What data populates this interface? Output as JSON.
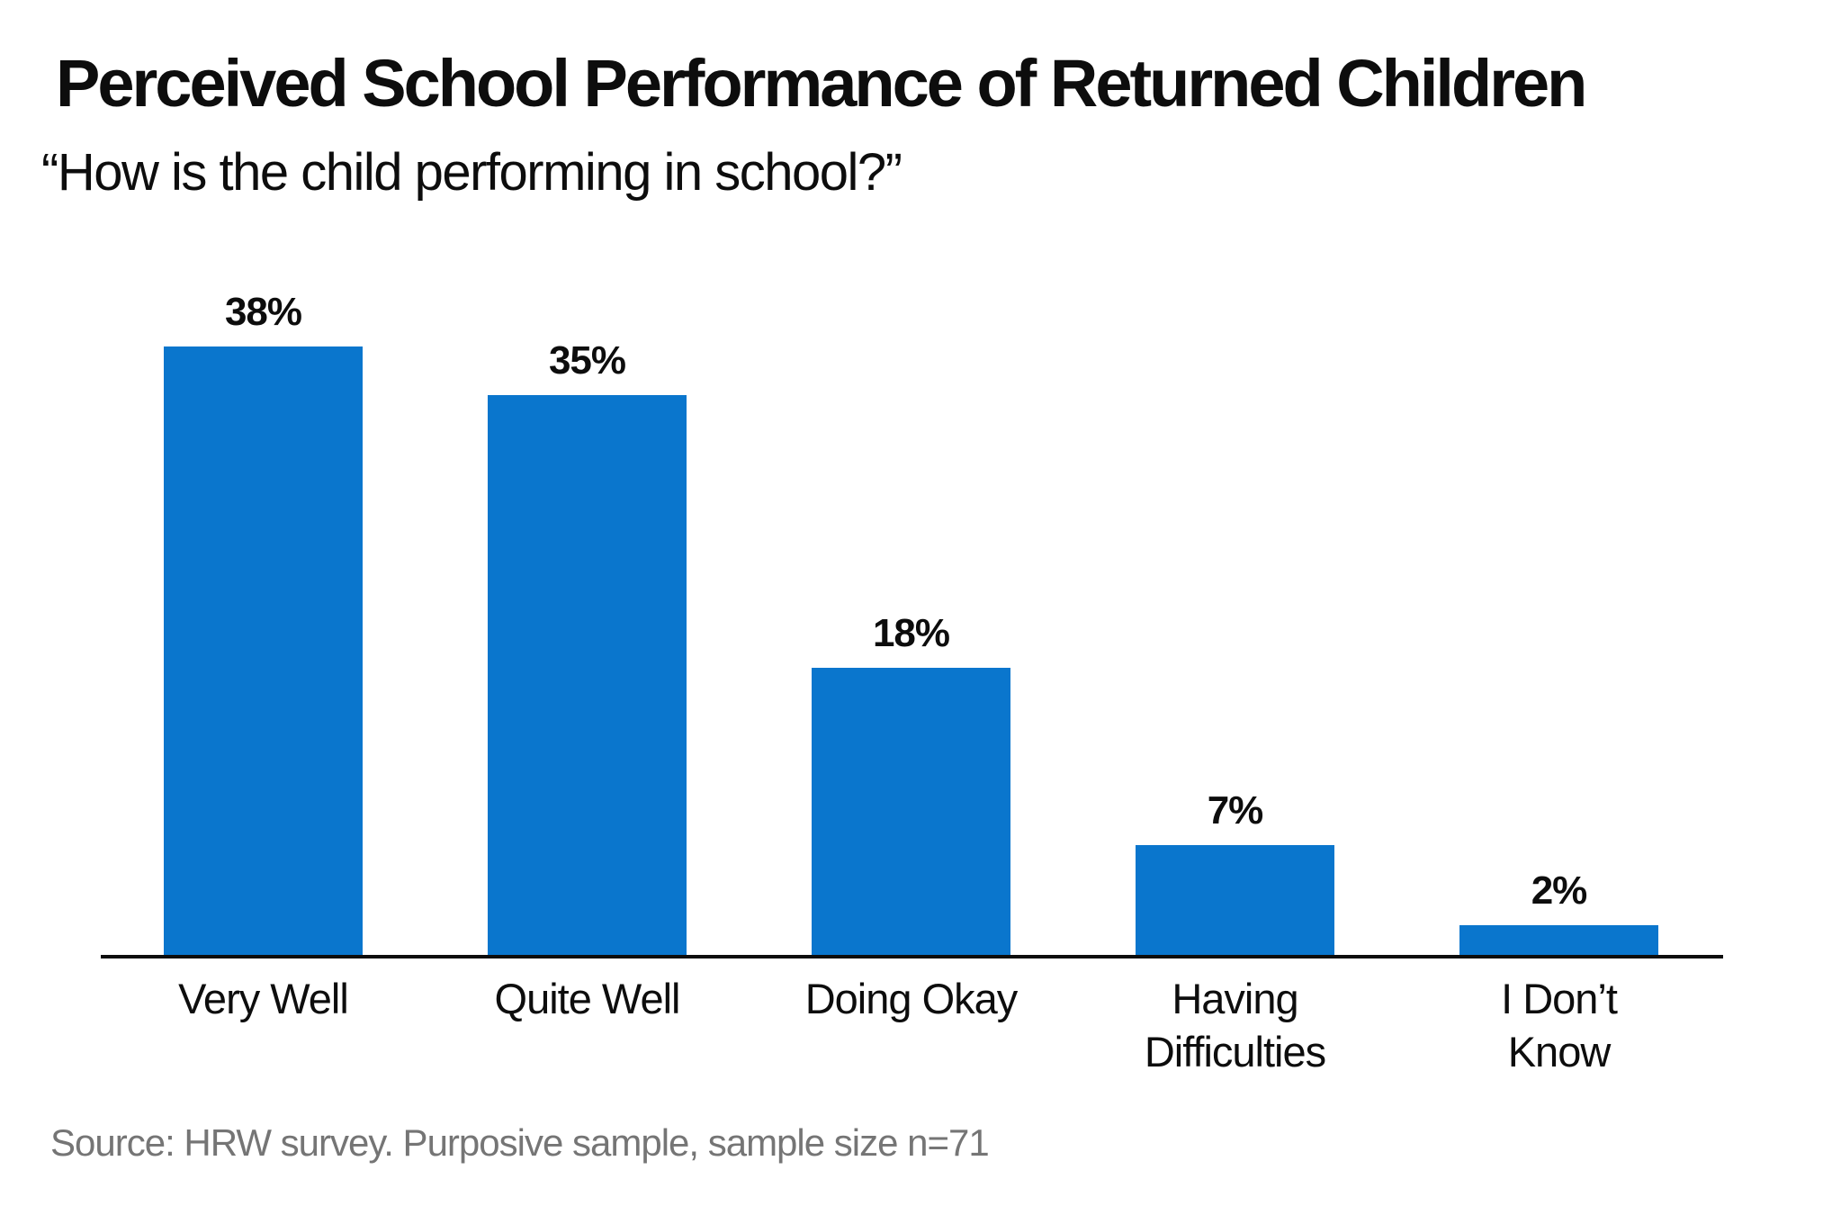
{
  "page": {
    "title": "Perceived School Performance of Returned Children",
    "subtitle": "“How is the child performing in school?”",
    "source": "Source: HRW survey. Purposive sample, sample size n=71"
  },
  "colors": {
    "bar": "#0a76cd",
    "text": "#0d0d0d",
    "source_text": "#757575",
    "axis_line": "#0d0d0d",
    "background": "#ffffff"
  },
  "chart_data": {
    "type": "bar",
    "title": "Perceived School Performance of Returned Children",
    "subtitle": "“How is the child performing in school?”",
    "categories": [
      "Very Well",
      "Quite Well",
      "Doing Okay",
      "Having Difficulties",
      "I Don’t Know"
    ],
    "category_label_lines": [
      [
        "Very Well"
      ],
      [
        "Quite Well"
      ],
      [
        "Doing Okay"
      ],
      [
        "Having",
        "Difficulties"
      ],
      [
        "I Don’t",
        "Know"
      ]
    ],
    "values": [
      38,
      35,
      18,
      7,
      2
    ],
    "value_labels": [
      "38%",
      "35%",
      "18%",
      "7%",
      "2%"
    ],
    "unit": "%",
    "xlabel": "",
    "ylabel": "",
    "ylim": [
      0,
      40
    ],
    "grid": false,
    "legend": false,
    "bar_color": "#0a76cd",
    "source": "Source: HRW survey. Purposive sample, sample size n=71"
  }
}
